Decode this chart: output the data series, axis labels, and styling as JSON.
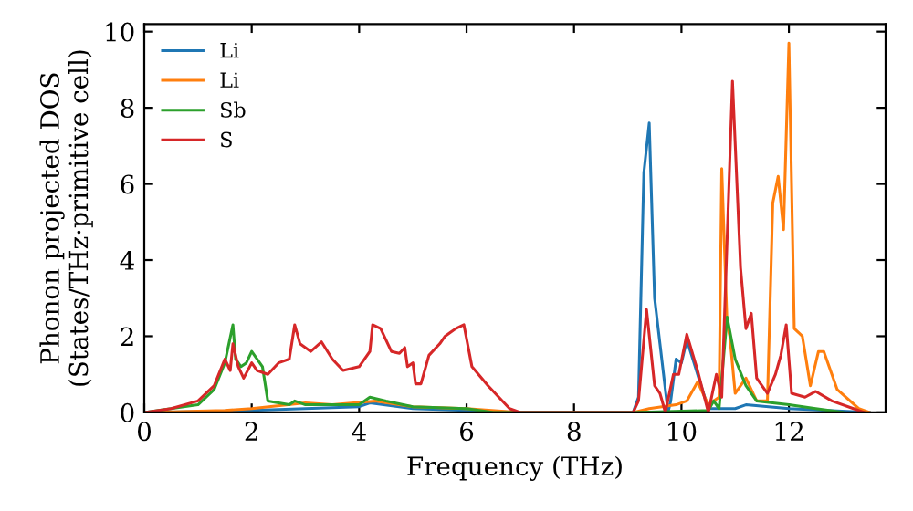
{
  "chart_data": {
    "type": "line",
    "xlabel": "Frequency (THz)",
    "ylabel": "Phonon projected DOS\n(States/THz·primitive cell)",
    "xlim": [
      0,
      13.8
    ],
    "ylim": [
      0,
      10.2
    ],
    "xticks": [
      0,
      2,
      4,
      6,
      8,
      10,
      12
    ],
    "yticks": [
      0,
      2,
      4,
      6,
      8,
      10
    ],
    "legend": "top left",
    "grid": false,
    "marker": "none",
    "line_style": "solid",
    "series": [
      {
        "name": "Li",
        "color": "#1f77b4",
        "x": [
          0,
          2,
          3,
          4,
          4.2,
          5,
          6,
          7,
          9.1,
          9.2,
          9.3,
          9.4,
          9.5,
          9.6,
          9.75,
          9.8,
          9.9,
          10.0,
          10.1,
          10.3,
          10.5,
          11.0,
          11.2,
          12.0,
          13.5
        ],
        "values": [
          0,
          0.05,
          0.1,
          0.15,
          0.25,
          0.1,
          0.05,
          0,
          0,
          0.4,
          6.3,
          7.6,
          3.0,
          1.8,
          0,
          0.3,
          1.4,
          1.3,
          1.9,
          1.0,
          0.1,
          0.1,
          0.2,
          0.1,
          0
        ]
      },
      {
        "name": "Li",
        "color": "#ff7f0e",
        "x": [
          0,
          1.5,
          2,
          3,
          3.5,
          4.3,
          5,
          6,
          7,
          9.1,
          9.4,
          9.9,
          10.1,
          10.3,
          10.5,
          10.7,
          10.75,
          10.85,
          10.9,
          11.0,
          11.2,
          11.4,
          11.6,
          11.7,
          11.8,
          11.9,
          12.0,
          12.1,
          12.25,
          12.4,
          12.55,
          12.65,
          12.9,
          13.3,
          13.5
        ],
        "values": [
          0,
          0.05,
          0.1,
          0.25,
          0.2,
          0.3,
          0.15,
          0.1,
          0,
          0,
          0.1,
          0.2,
          0.3,
          0.8,
          0.2,
          0.4,
          6.4,
          2.3,
          2.0,
          0.5,
          0.9,
          0.3,
          0.3,
          5.5,
          6.2,
          4.8,
          9.7,
          2.2,
          2.0,
          0.7,
          1.6,
          1.6,
          0.6,
          0.1,
          0
        ]
      },
      {
        "name": "Sb",
        "color": "#2ca02c",
        "x": [
          0,
          1,
          1.3,
          1.5,
          1.65,
          1.7,
          1.8,
          1.9,
          2.0,
          2.2,
          2.3,
          2.7,
          2.8,
          3,
          4,
          4.2,
          4.5,
          5,
          6,
          6.5,
          9.1,
          10.5,
          10.6,
          10.7,
          10.85,
          11.0,
          11.2,
          11.4,
          12,
          12.5,
          13
        ],
        "values": [
          0,
          0.2,
          0.6,
          1.3,
          2.3,
          1.4,
          1.2,
          1.3,
          1.6,
          1.2,
          0.3,
          0.2,
          0.3,
          0.2,
          0.2,
          0.4,
          0.3,
          0.15,
          0.1,
          0,
          0,
          0.05,
          0.3,
          0.1,
          2.5,
          1.4,
          0.7,
          0.3,
          0.2,
          0.1,
          0
        ]
      },
      {
        "name": "S",
        "color": "#d62728",
        "x": [
          0,
          0.5,
          1,
          1.3,
          1.5,
          1.6,
          1.65,
          1.75,
          1.85,
          2.0,
          2.1,
          2.3,
          2.5,
          2.7,
          2.8,
          2.9,
          3.1,
          3.3,
          3.5,
          3.7,
          4.0,
          4.2,
          4.25,
          4.4,
          4.6,
          4.75,
          4.85,
          4.9,
          5.0,
          5.05,
          5.15,
          5.3,
          5.5,
          5.6,
          5.7,
          5.8,
          5.95,
          6.1,
          6.4,
          6.8,
          7.0,
          9.1,
          9.2,
          9.35,
          9.5,
          9.6,
          9.7,
          9.85,
          9.95,
          10.1,
          10.3,
          10.5,
          10.65,
          10.75,
          10.95,
          11.1,
          11.2,
          11.3,
          11.4,
          11.6,
          11.75,
          11.85,
          11.95,
          12.05,
          12.3,
          12.5,
          12.8,
          13.2,
          13.4
        ],
        "values": [
          0,
          0.1,
          0.3,
          0.7,
          1.4,
          1.1,
          1.8,
          1.2,
          0.9,
          1.3,
          1.1,
          1.0,
          1.3,
          1.4,
          2.3,
          1.8,
          1.6,
          1.85,
          1.4,
          1.1,
          1.2,
          1.6,
          2.3,
          2.2,
          1.6,
          1.55,
          1.7,
          1.2,
          1.3,
          0.75,
          0.75,
          1.5,
          1.8,
          2.0,
          2.1,
          2.2,
          2.3,
          1.2,
          0.7,
          0.1,
          0,
          0,
          0.3,
          2.7,
          0.7,
          0.5,
          0,
          1.0,
          1.0,
          2.05,
          1.1,
          0,
          1.0,
          0.4,
          8.7,
          3.8,
          2.2,
          2.6,
          0.9,
          0.5,
          1.0,
          1.5,
          2.3,
          0.5,
          0.4,
          0.55,
          0.3,
          0.1,
          0
        ]
      }
    ]
  }
}
